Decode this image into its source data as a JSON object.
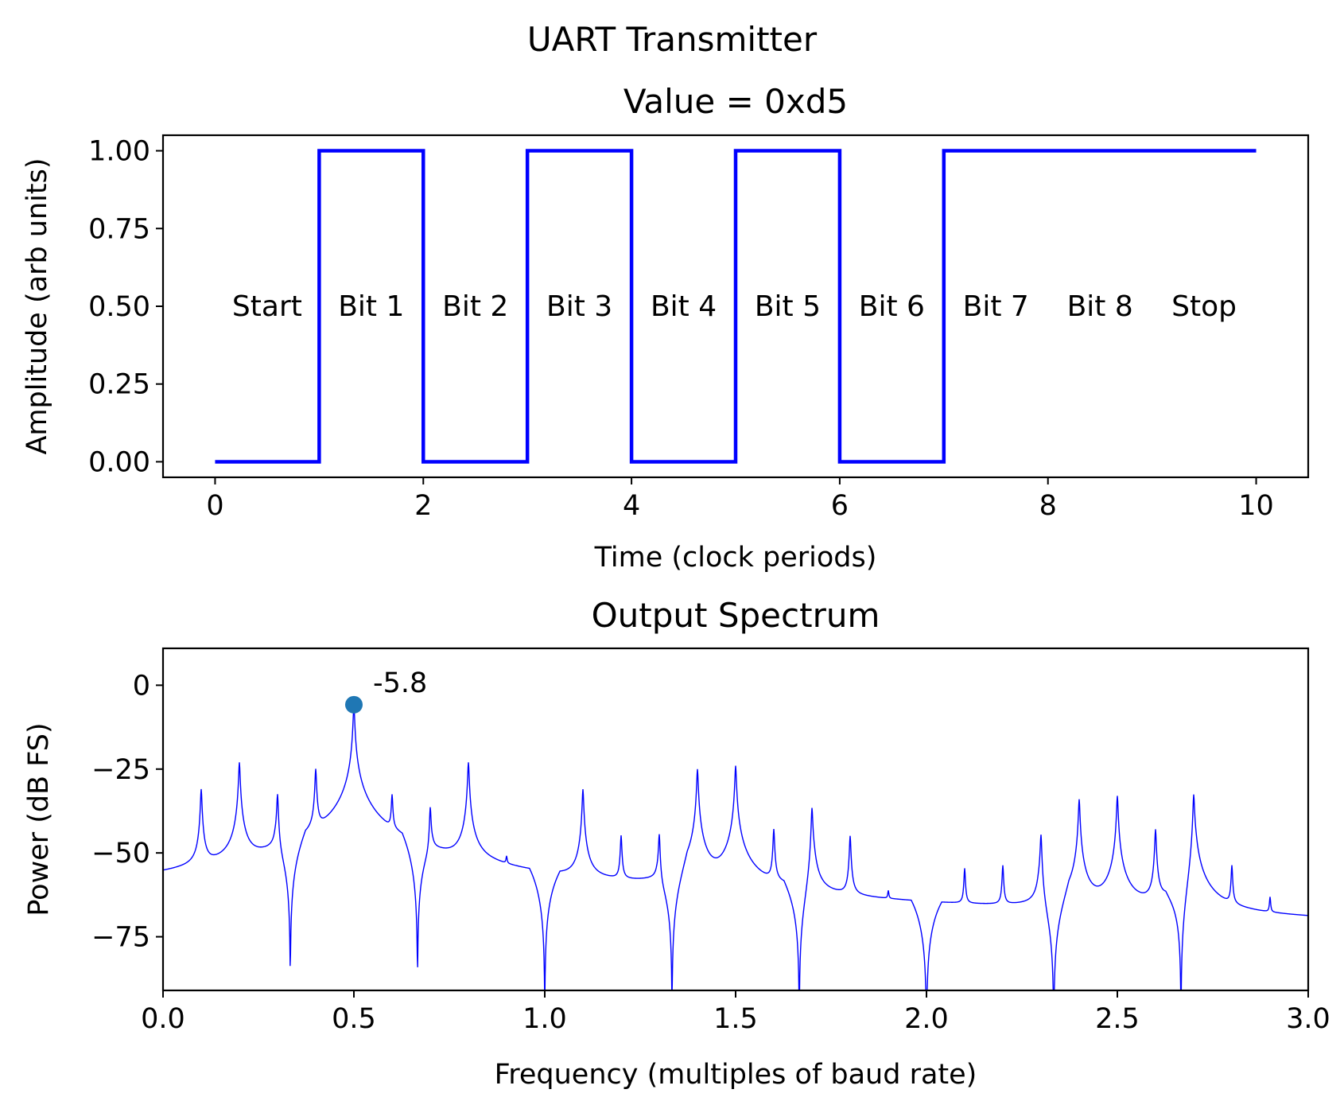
{
  "figure": {
    "suptitle": "UART Transmitter"
  },
  "chart_data": [
    {
      "type": "line",
      "title": "Value = 0xd5",
      "xlabel": "Time (clock periods)",
      "ylabel": "Amplitude (arb units)",
      "xlim": [
        -0.5,
        10.5
      ],
      "ylim": [
        -0.05,
        1.05
      ],
      "xticks": [
        0,
        2,
        4,
        6,
        8,
        10
      ],
      "xtick_labels": [
        "0",
        "2",
        "4",
        "6",
        "8",
        "10"
      ],
      "yticks": [
        0,
        0.25,
        0.5,
        0.75,
        1.0
      ],
      "ytick_labels": [
        "0.00",
        "0.25",
        "0.50",
        "0.75",
        "1.00"
      ],
      "line_color": "#0000ff",
      "steps": [
        {
          "x": 0,
          "y": 0
        },
        {
          "x": 1,
          "y": 1
        },
        {
          "x": 2,
          "y": 0
        },
        {
          "x": 3,
          "y": 1
        },
        {
          "x": 4,
          "y": 0
        },
        {
          "x": 5,
          "y": 1
        },
        {
          "x": 6,
          "y": 0
        },
        {
          "x": 7,
          "y": 1
        },
        {
          "x": 10,
          "y": 1
        }
      ],
      "annotations": [
        {
          "text": "Start",
          "x": 0.5,
          "y": 0.5
        },
        {
          "text": "Bit 1",
          "x": 1.5,
          "y": 0.5
        },
        {
          "text": "Bit 2",
          "x": 2.5,
          "y": 0.5
        },
        {
          "text": "Bit 3",
          "x": 3.5,
          "y": 0.5
        },
        {
          "text": "Bit 4",
          "x": 4.5,
          "y": 0.5
        },
        {
          "text": "Bit 5",
          "x": 5.5,
          "y": 0.5
        },
        {
          "text": "Bit 6",
          "x": 6.5,
          "y": 0.5
        },
        {
          "text": "Bit 7",
          "x": 7.5,
          "y": 0.5
        },
        {
          "text": "Bit 8",
          "x": 8.5,
          "y": 0.5
        },
        {
          "text": "Stop",
          "x": 9.5,
          "y": 0.5
        }
      ],
      "grid": false
    },
    {
      "type": "line",
      "title": "Output Spectrum",
      "xlabel": "Frequency (multiples of baud rate)",
      "ylabel": "Power (dB FS)",
      "xlim": [
        0.0,
        3.0
      ],
      "ylim": [
        -91,
        11
      ],
      "xticks": [
        0.0,
        0.5,
        1.0,
        1.5,
        2.0,
        2.5,
        3.0
      ],
      "xtick_labels": [
        "0.0",
        "0.5",
        "1.0",
        "1.5",
        "2.0",
        "2.5",
        "3.0"
      ],
      "yticks": [
        0,
        -25,
        -50,
        -75
      ],
      "ytick_labels": [
        "0",
        "−25",
        "−50",
        "−75"
      ],
      "line_color": "#0000ff",
      "marker_color": "#1f77b4",
      "baseline_db": -68,
      "peaks": [
        {
          "x": 0.1,
          "y": -31
        },
        {
          "x": 0.2,
          "y": -23
        },
        {
          "x": 0.3,
          "y": -31
        },
        {
          "x": 0.4,
          "y": -25
        },
        {
          "x": 0.5,
          "y": -5.8
        },
        {
          "x": 0.6,
          "y": -33
        },
        {
          "x": 0.7,
          "y": -35
        },
        {
          "x": 0.8,
          "y": -23
        },
        {
          "x": 0.9,
          "y": -55
        },
        {
          "x": 1.1,
          "y": -31
        },
        {
          "x": 1.2,
          "y": -45
        },
        {
          "x": 1.3,
          "y": -43
        },
        {
          "x": 1.4,
          "y": -25
        },
        {
          "x": 1.5,
          "y": -24
        },
        {
          "x": 1.6,
          "y": -43
        },
        {
          "x": 1.7,
          "y": -35
        },
        {
          "x": 1.8,
          "y": -45
        },
        {
          "x": 1.9,
          "y": -65
        },
        {
          "x": 2.1,
          "y": -55
        },
        {
          "x": 2.2,
          "y": -54
        },
        {
          "x": 2.3,
          "y": -43
        },
        {
          "x": 2.4,
          "y": -34
        },
        {
          "x": 2.5,
          "y": -33
        },
        {
          "x": 2.6,
          "y": -43
        },
        {
          "x": 2.7,
          "y": -31
        },
        {
          "x": 2.8,
          "y": -54
        },
        {
          "x": 2.9,
          "y": -65
        }
      ],
      "marker": {
        "x": 0.5,
        "y": -5.8,
        "label": "-5.8"
      },
      "grid": false
    }
  ]
}
